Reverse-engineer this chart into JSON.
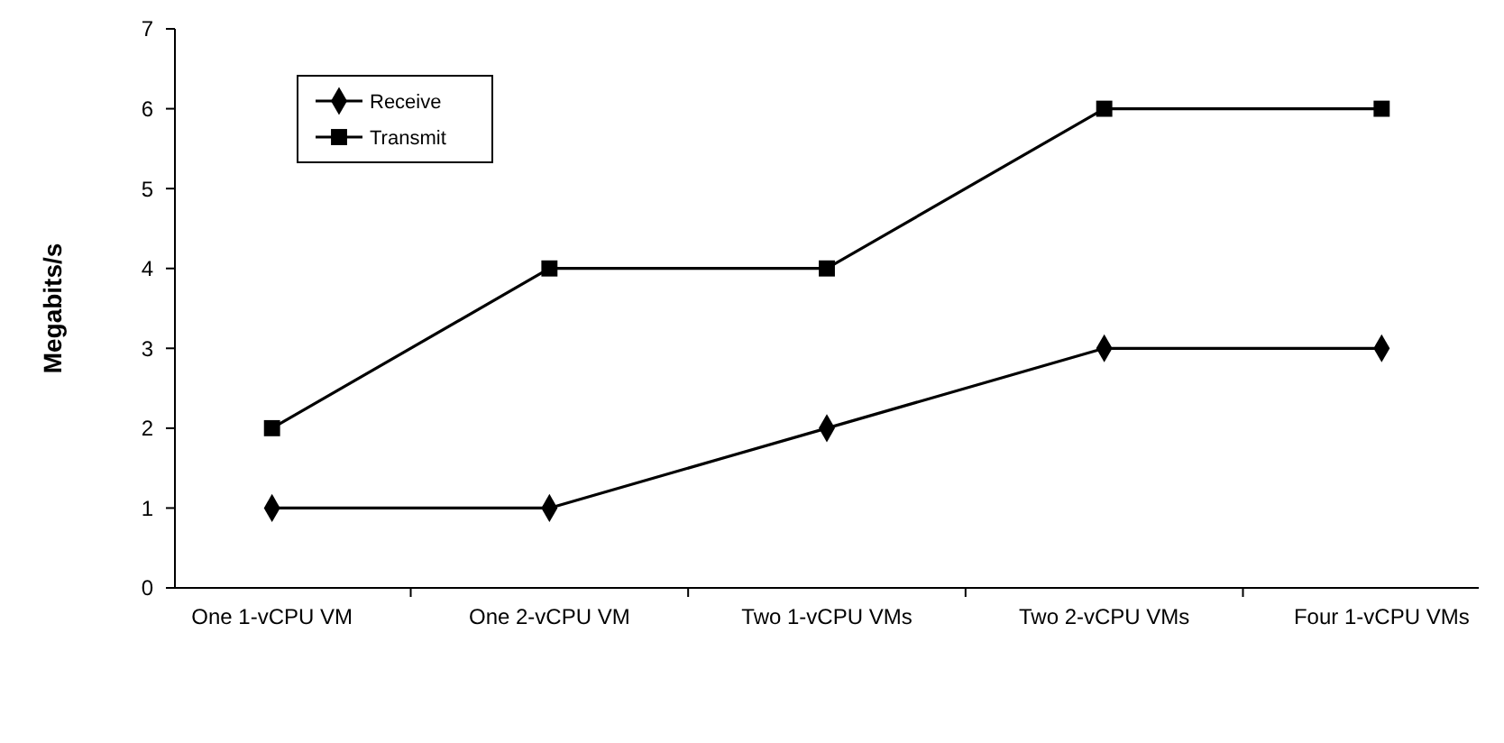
{
  "chart_data": {
    "type": "line",
    "ylabel": "Megabits/s",
    "categories": [
      "One 1-vCPU VM",
      "One 2-vCPU VM",
      "Two 1-vCPU VMs",
      "Two 2-vCPU VMs",
      "Four 1-vCPU VMs"
    ],
    "series": [
      {
        "name": "Receive",
        "color": "#000000",
        "marker": "diamond",
        "values": [
          1,
          1,
          2,
          3,
          3
        ]
      },
      {
        "name": "Transmit",
        "color": "#000000",
        "marker": "square",
        "values": [
          2,
          4,
          4,
          6,
          6
        ]
      }
    ],
    "ylim": [
      0,
      7
    ],
    "yticks": [
      0,
      1,
      2,
      3,
      4,
      5,
      6,
      7
    ],
    "grid": false,
    "legend": "top left",
    "line_style": "solid"
  }
}
